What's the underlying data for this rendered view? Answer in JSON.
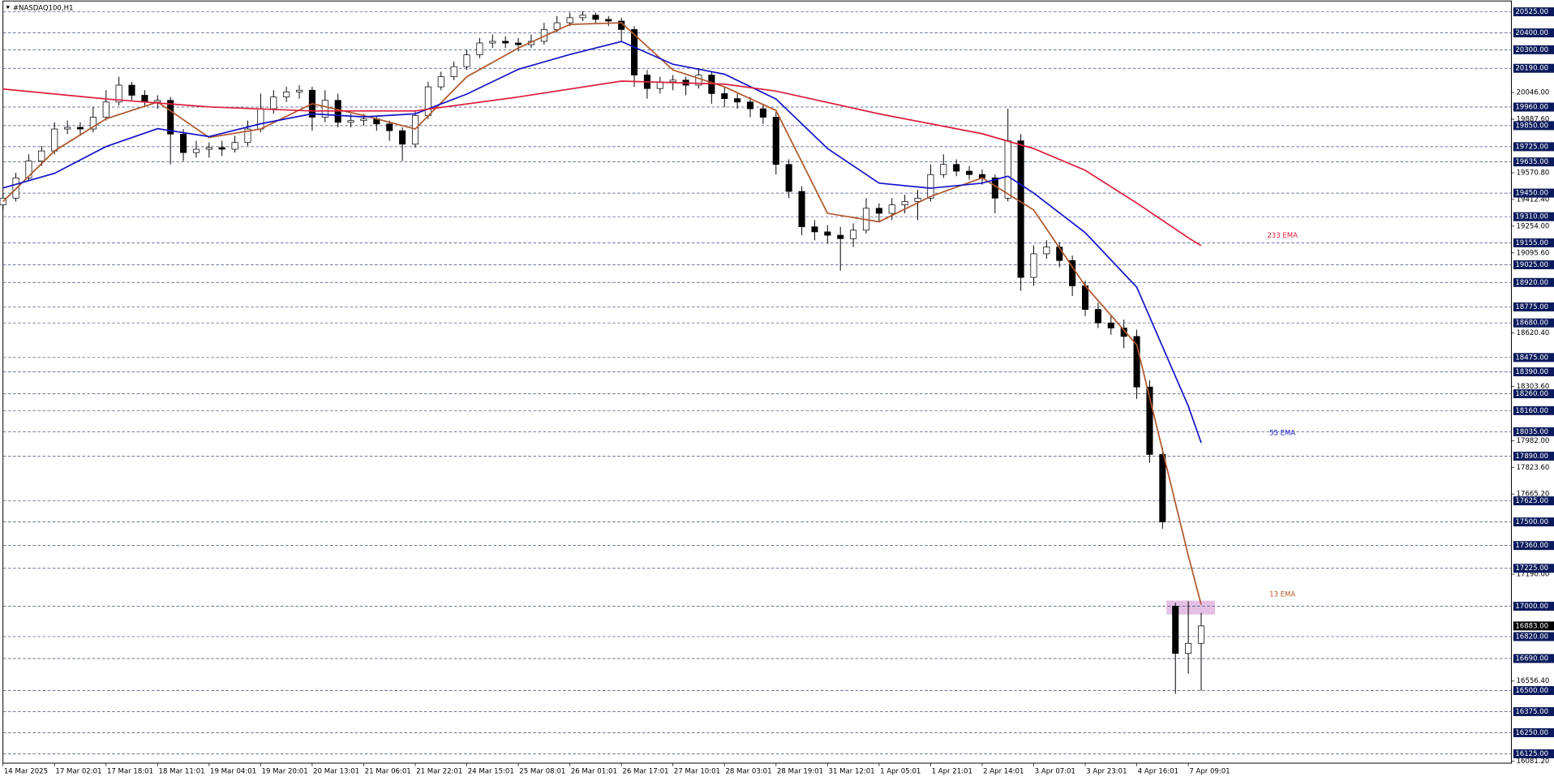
{
  "chart_data": {
    "type": "candlestick",
    "title": "#NASDAQ100,H1",
    "up_color": "#ffffff",
    "down_color": "#000000",
    "level_color": "#0a1a5c",
    "current_color": "#000000",
    "xlim": [
      0,
      117
    ],
    "ylim": [
      16081.2,
      20595
    ],
    "xticks": [
      {
        "value": 0,
        "label": "14 Mar 2025"
      },
      {
        "value": 4,
        "label": "17 Mar 02:01"
      },
      {
        "value": 8,
        "label": "17 Mar 18:01"
      },
      {
        "value": 12,
        "label": "18 Mar 11:01"
      },
      {
        "value": 16,
        "label": "19 Mar 04:01"
      },
      {
        "value": 20,
        "label": "19 Mar 20:01"
      },
      {
        "value": 24,
        "label": "20 Mar 13:01"
      },
      {
        "value": 28,
        "label": "21 Mar 06:01"
      },
      {
        "value": 32,
        "label": "21 Mar 22:01"
      },
      {
        "value": 36,
        "label": "24 Mar 15:01"
      },
      {
        "value": 40,
        "label": "25 Mar 08:01"
      },
      {
        "value": 44,
        "label": "26 Mar 01:01"
      },
      {
        "value": 48,
        "label": "26 Mar 17:01"
      },
      {
        "value": 52,
        "label": "27 Mar 10:01"
      },
      {
        "value": 56,
        "label": "28 Mar 03:01"
      },
      {
        "value": 60,
        "label": "28 Mar 19:01"
      },
      {
        "value": 64,
        "label": "31 Mar 12:01"
      },
      {
        "value": 68,
        "label": "1 Apr 05:01"
      },
      {
        "value": 72,
        "label": "1 Apr 21:01"
      },
      {
        "value": 76,
        "label": "2 Apr 14:01"
      },
      {
        "value": 80,
        "label": "3 Apr 07:01"
      },
      {
        "value": 84,
        "label": "3 Apr 23:01"
      },
      {
        "value": 88,
        "label": "4 Apr 16:01"
      },
      {
        "value": 92,
        "label": "7 Apr 09:01"
      }
    ],
    "yticks": [
      {
        "value": 20046,
        "label": "20046.00"
      },
      {
        "value": 19887.6,
        "label": "19887.60"
      },
      {
        "value": 19570.8,
        "label": "19570.80"
      },
      {
        "value": 19412.4,
        "label": "19412.40"
      },
      {
        "value": 19254,
        "label": "19254.00"
      },
      {
        "value": 19095.6,
        "label": "19095.60"
      },
      {
        "value": 18620.4,
        "label": "18620.40"
      },
      {
        "value": 18303.6,
        "label": "18303.60"
      },
      {
        "value": 17982,
        "label": "17982.00"
      },
      {
        "value": 17823.6,
        "label": "17823.60"
      },
      {
        "value": 17665.2,
        "label": "17665.20"
      },
      {
        "value": 17190,
        "label": "17190.00"
      },
      {
        "value": 16556.4,
        "label": "16556.40"
      },
      {
        "value": 16081.2,
        "label": "16081.20"
      }
    ],
    "levels": [
      {
        "value": 20525,
        "label": "20525.00"
      },
      {
        "value": 20400,
        "label": "20400.00"
      },
      {
        "value": 20300,
        "label": "20300.00"
      },
      {
        "value": 20190,
        "label": "20190.00"
      },
      {
        "value": 19960,
        "label": "19960.00"
      },
      {
        "value": 19850,
        "label": "19850.00"
      },
      {
        "value": 19725,
        "label": "19725.00"
      },
      {
        "value": 19635,
        "label": "19635.00"
      },
      {
        "value": 19450,
        "label": "19450.00"
      },
      {
        "value": 19310,
        "label": "19310.00"
      },
      {
        "value": 19155,
        "label": "19155.00"
      },
      {
        "value": 19025,
        "label": "19025.00"
      },
      {
        "value": 18920,
        "label": "18920.00"
      },
      {
        "value": 18775,
        "label": "18775.00"
      },
      {
        "value": 18680,
        "label": "18680.00"
      },
      {
        "value": 18475,
        "label": "18475.00"
      },
      {
        "value": 18390,
        "label": "18390.00"
      },
      {
        "value": 18260,
        "label": "18260.00"
      },
      {
        "value": 18160,
        "label": "18160.00"
      },
      {
        "value": 18035,
        "label": "18035.00"
      },
      {
        "value": 17890,
        "label": "17890.00"
      },
      {
        "value": 17625,
        "label": "17625.00"
      },
      {
        "value": 17500,
        "label": "17500.00"
      },
      {
        "value": 17360,
        "label": "17360.00"
      },
      {
        "value": 17225,
        "label": "17225.00"
      },
      {
        "value": 17000,
        "label": "17000.00"
      },
      {
        "value": 16820,
        "label": "16820.00"
      },
      {
        "value": 16690,
        "label": "16690.00"
      },
      {
        "value": 16500,
        "label": "16500.00"
      },
      {
        "value": 16375,
        "label": "16375.00"
      },
      {
        "value": 16250,
        "label": "16250.00"
      },
      {
        "value": 16125,
        "label": "16125.00"
      }
    ],
    "current_price": {
      "value": 16883,
      "label": "16883.00"
    },
    "candles": [
      [
        19380,
        19450,
        19350,
        19420
      ],
      [
        19420,
        19570,
        19400,
        19540
      ],
      [
        19540,
        19680,
        19520,
        19640
      ],
      [
        19640,
        19730,
        19610,
        19700
      ],
      [
        19700,
        19870,
        19680,
        19830
      ],
      [
        19830,
        19880,
        19800,
        19840
      ],
      [
        19840,
        19870,
        19790,
        19830
      ],
      [
        19830,
        19960,
        19810,
        19900
      ],
      [
        19900,
        20060,
        19880,
        19990
      ],
      [
        19990,
        20140,
        19970,
        20090
      ],
      [
        20090,
        20110,
        20000,
        20030
      ],
      [
        20030,
        20060,
        19960,
        19990
      ],
      [
        19990,
        20030,
        19950,
        20000
      ],
      [
        20000,
        20020,
        19620,
        19800
      ],
      [
        19800,
        19830,
        19640,
        19690
      ],
      [
        19690,
        19760,
        19660,
        19710
      ],
      [
        19710,
        19750,
        19660,
        19720
      ],
      [
        19720,
        19760,
        19670,
        19710
      ],
      [
        19710,
        19790,
        19690,
        19750
      ],
      [
        19750,
        19880,
        19730,
        19830
      ],
      [
        19830,
        20040,
        19810,
        19950
      ],
      [
        19950,
        20060,
        19920,
        20020
      ],
      [
        20020,
        20080,
        19990,
        20050
      ],
      [
        20050,
        20090,
        20010,
        20060
      ],
      [
        20060,
        20080,
        19820,
        19900
      ],
      [
        19900,
        20060,
        19870,
        20000
      ],
      [
        20000,
        20040,
        19840,
        19870
      ],
      [
        19870,
        19920,
        19840,
        19880
      ],
      [
        19880,
        19920,
        19850,
        19890
      ],
      [
        19890,
        19910,
        19820,
        19860
      ],
      [
        19860,
        19880,
        19760,
        19820
      ],
      [
        19820,
        19840,
        19640,
        19740
      ],
      [
        19740,
        19940,
        19720,
        19910
      ],
      [
        19910,
        20110,
        19890,
        20080
      ],
      [
        20080,
        20170,
        20060,
        20140
      ],
      [
        20140,
        20230,
        20120,
        20200
      ],
      [
        20200,
        20300,
        20180,
        20270
      ],
      [
        20270,
        20370,
        20250,
        20340
      ],
      [
        20340,
        20390,
        20310,
        20350
      ],
      [
        20350,
        20380,
        20310,
        20340
      ],
      [
        20340,
        20370,
        20290,
        20330
      ],
      [
        20330,
        20390,
        20310,
        20350
      ],
      [
        20350,
        20460,
        20330,
        20420
      ],
      [
        20420,
        20500,
        20400,
        20460
      ],
      [
        20460,
        20520,
        20440,
        20490
      ],
      [
        20490,
        20530,
        20470,
        20505
      ],
      [
        20505,
        20520,
        20460,
        20480
      ],
      [
        20480,
        20500,
        20440,
        20470
      ],
      [
        20470,
        20490,
        20350,
        20420
      ],
      [
        20420,
        20440,
        20080,
        20150
      ],
      [
        20150,
        20180,
        20010,
        20070
      ],
      [
        20070,
        20140,
        20040,
        20110
      ],
      [
        20110,
        20150,
        20060,
        20120
      ],
      [
        20120,
        20140,
        20030,
        20090
      ],
      [
        20090,
        20190,
        20070,
        20150
      ],
      [
        20150,
        20170,
        19980,
        20040
      ],
      [
        20040,
        20080,
        19960,
        20010
      ],
      [
        20010,
        20040,
        19950,
        19990
      ],
      [
        19990,
        20020,
        19900,
        19950
      ],
      [
        19950,
        19980,
        19860,
        19900
      ],
      [
        19900,
        19930,
        19560,
        19620
      ],
      [
        19620,
        19650,
        19420,
        19460
      ],
      [
        19460,
        19490,
        19200,
        19250
      ],
      [
        19250,
        19290,
        19170,
        19220
      ],
      [
        19220,
        19260,
        19150,
        19200
      ],
      [
        19200,
        19250,
        18990,
        19180
      ],
      [
        19180,
        19270,
        19130,
        19230
      ],
      [
        19230,
        19420,
        19210,
        19360
      ],
      [
        19360,
        19390,
        19280,
        19330
      ],
      [
        19330,
        19420,
        19290,
        19380
      ],
      [
        19380,
        19440,
        19330,
        19400
      ],
      [
        19400,
        19470,
        19290,
        19420
      ],
      [
        19420,
        19620,
        19400,
        19560
      ],
      [
        19560,
        19680,
        19540,
        19620
      ],
      [
        19620,
        19650,
        19550,
        19580
      ],
      [
        19580,
        19610,
        19530,
        19560
      ],
      [
        19560,
        19590,
        19500,
        19540
      ],
      [
        19540,
        19560,
        19330,
        19420
      ],
      [
        19420,
        19950,
        19400,
        19760
      ],
      [
        19760,
        19800,
        18870,
        18950
      ],
      [
        18950,
        19140,
        18900,
        19090
      ],
      [
        19090,
        19170,
        19060,
        19130
      ],
      [
        19130,
        19160,
        19010,
        19050
      ],
      [
        19050,
        19080,
        18840,
        18900
      ],
      [
        18900,
        18930,
        18720,
        18760
      ],
      [
        18760,
        18800,
        18650,
        18680
      ],
      [
        18680,
        18720,
        18610,
        18650
      ],
      [
        18650,
        18700,
        18530,
        18600
      ],
      [
        18600,
        18640,
        18230,
        18300
      ],
      [
        18300,
        18340,
        17850,
        17900
      ],
      [
        17900,
        17940,
        17460,
        17500
      ],
      [
        17000,
        17020,
        16480,
        16720
      ],
      [
        16720,
        17030,
        16600,
        16780
      ],
      [
        16780,
        16960,
        16500,
        16883
      ]
    ],
    "series": [
      {
        "name": "13 EMA",
        "color": "#b0562a",
        "x": [
          0,
          4,
          8,
          12,
          16,
          20,
          24,
          28,
          32,
          36,
          40,
          44,
          48,
          52,
          56,
          60,
          64,
          68,
          72,
          76,
          80,
          84,
          88,
          92,
          93
        ],
        "values": [
          19400,
          19700,
          19890,
          19990,
          19780,
          19830,
          19980,
          19910,
          19830,
          20140,
          20310,
          20450,
          20460,
          20180,
          20080,
          19940,
          19330,
          19280,
          19430,
          19540,
          19350,
          18900,
          18550,
          17300,
          17010
        ]
      },
      {
        "name": "55 EMA",
        "color": "#1414c8",
        "x": [
          0,
          4,
          8,
          12,
          16,
          20,
          24,
          28,
          32,
          36,
          40,
          44,
          48,
          52,
          56,
          60,
          64,
          68,
          72,
          76,
          78,
          80,
          84,
          88,
          92,
          93
        ],
        "values": [
          19480,
          19567,
          19726,
          19832,
          19785,
          19861,
          19920,
          19902,
          19920,
          20037,
          20184,
          20272,
          20349,
          20214,
          20155,
          20008,
          19714,
          19509,
          19479,
          19509,
          19550,
          19450,
          19215,
          18892,
          18187,
          17969
        ]
      },
      {
        "name": "233 EMA",
        "color": "#dc1e3c",
        "x": [
          0,
          8,
          16,
          24,
          32,
          40,
          48,
          56,
          60,
          68,
          76,
          80,
          84,
          88,
          92,
          93
        ],
        "values": [
          20067,
          20008,
          19961,
          19937,
          19937,
          20020,
          20114,
          20096,
          20055,
          19920,
          19802,
          19714,
          19585,
          19391,
          19185,
          19138
        ]
      }
    ]
  }
}
